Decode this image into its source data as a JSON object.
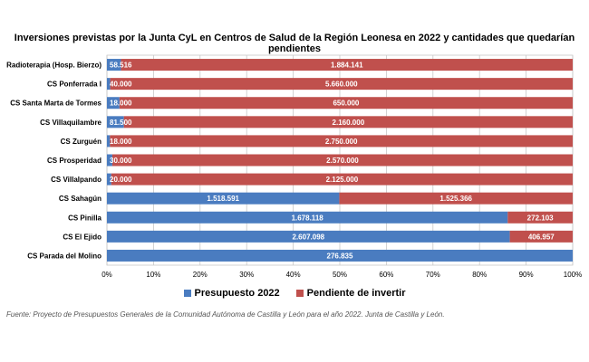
{
  "chart_data": {
    "type": "bar",
    "orientation": "horizontal",
    "stacked": "percent",
    "title": "Inversiones previstas por la Junta CyL en Centros de Salud de la Región Leonesa en 2022 y cantidades que quedarían pendientes",
    "categories": [
      "Radioterapia (Hosp. Bierzo)",
      "CS Ponferrada I",
      "CS Santa Marta de Tormes",
      "CS Villaquilambre",
      "CS Zurguén",
      "CS Prosperidad",
      "CS Villalpando",
      "CS Sahagún",
      "CS Pinilla",
      "CS El Ejido",
      "CS Parada del Molino"
    ],
    "series": [
      {
        "name": "Presupuesto 2022",
        "color": "#4a7cc0",
        "values": [
          58516,
          40000,
          18000,
          81500,
          18000,
          30000,
          20000,
          1518591,
          1678118,
          2607098,
          276835
        ],
        "labels": [
          "58.516",
          "40.000",
          "18.000",
          "81.500",
          "18.000",
          "30.000",
          "20.000",
          "1.518.591",
          "1.678.118",
          "2.607.098",
          "276.835"
        ]
      },
      {
        "name": "Pendiente de invertir",
        "color": "#c0504d",
        "values": [
          1884141,
          5660000,
          650000,
          2160000,
          2750000,
          2570000,
          2125000,
          1525366,
          272103,
          406957,
          0
        ],
        "labels": [
          "1.884.141",
          "5.660.000",
          "650.000",
          "2.160.000",
          "2.750.000",
          "2.570.000",
          "2.125.000",
          "1.525.366",
          "272.103",
          "406.957",
          ""
        ]
      }
    ],
    "x_ticks": [
      "0%",
      "10%",
      "20%",
      "30%",
      "40%",
      "50%",
      "60%",
      "70%",
      "80%",
      "90%",
      "100%"
    ],
    "xlim": [
      0,
      100
    ],
    "grid": true,
    "legend": "bottom"
  },
  "source": "Fuente: Proyecto de Presupuestos Generales de la Comunidad Autónoma de Castilla y León para el año 2022. Junta de Castilla y León."
}
